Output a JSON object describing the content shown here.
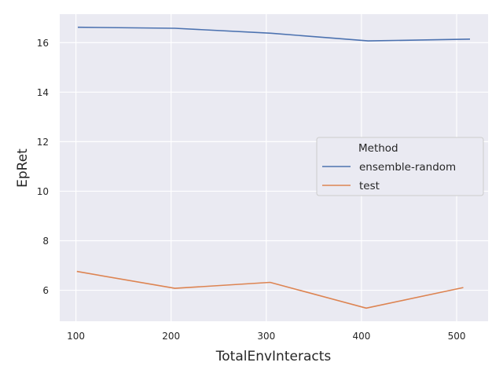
{
  "chart_data": {
    "type": "line",
    "xlabel": "TotalEnvInteracts",
    "ylabel": "EpRet",
    "xlim": [
      83,
      533
    ],
    "ylim": [
      4.75,
      17.15
    ],
    "xticks": [
      100,
      200,
      300,
      400,
      500
    ],
    "yticks": [
      6,
      8,
      10,
      12,
      14,
      16
    ],
    "grid": true,
    "legend": {
      "title": "Method",
      "placement": "center-right"
    },
    "series": [
      {
        "name": "ensemble-random",
        "color": "#4c72b0",
        "x": [
          102,
          204,
          305,
          407,
          514
        ],
        "y": [
          16.62,
          16.58,
          16.38,
          16.07,
          16.14
        ]
      },
      {
        "name": "test",
        "color": "#dd8452",
        "x": [
          101,
          204,
          304,
          405,
          507
        ],
        "y": [
          6.76,
          6.08,
          6.32,
          5.28,
          6.11
        ]
      }
    ]
  }
}
